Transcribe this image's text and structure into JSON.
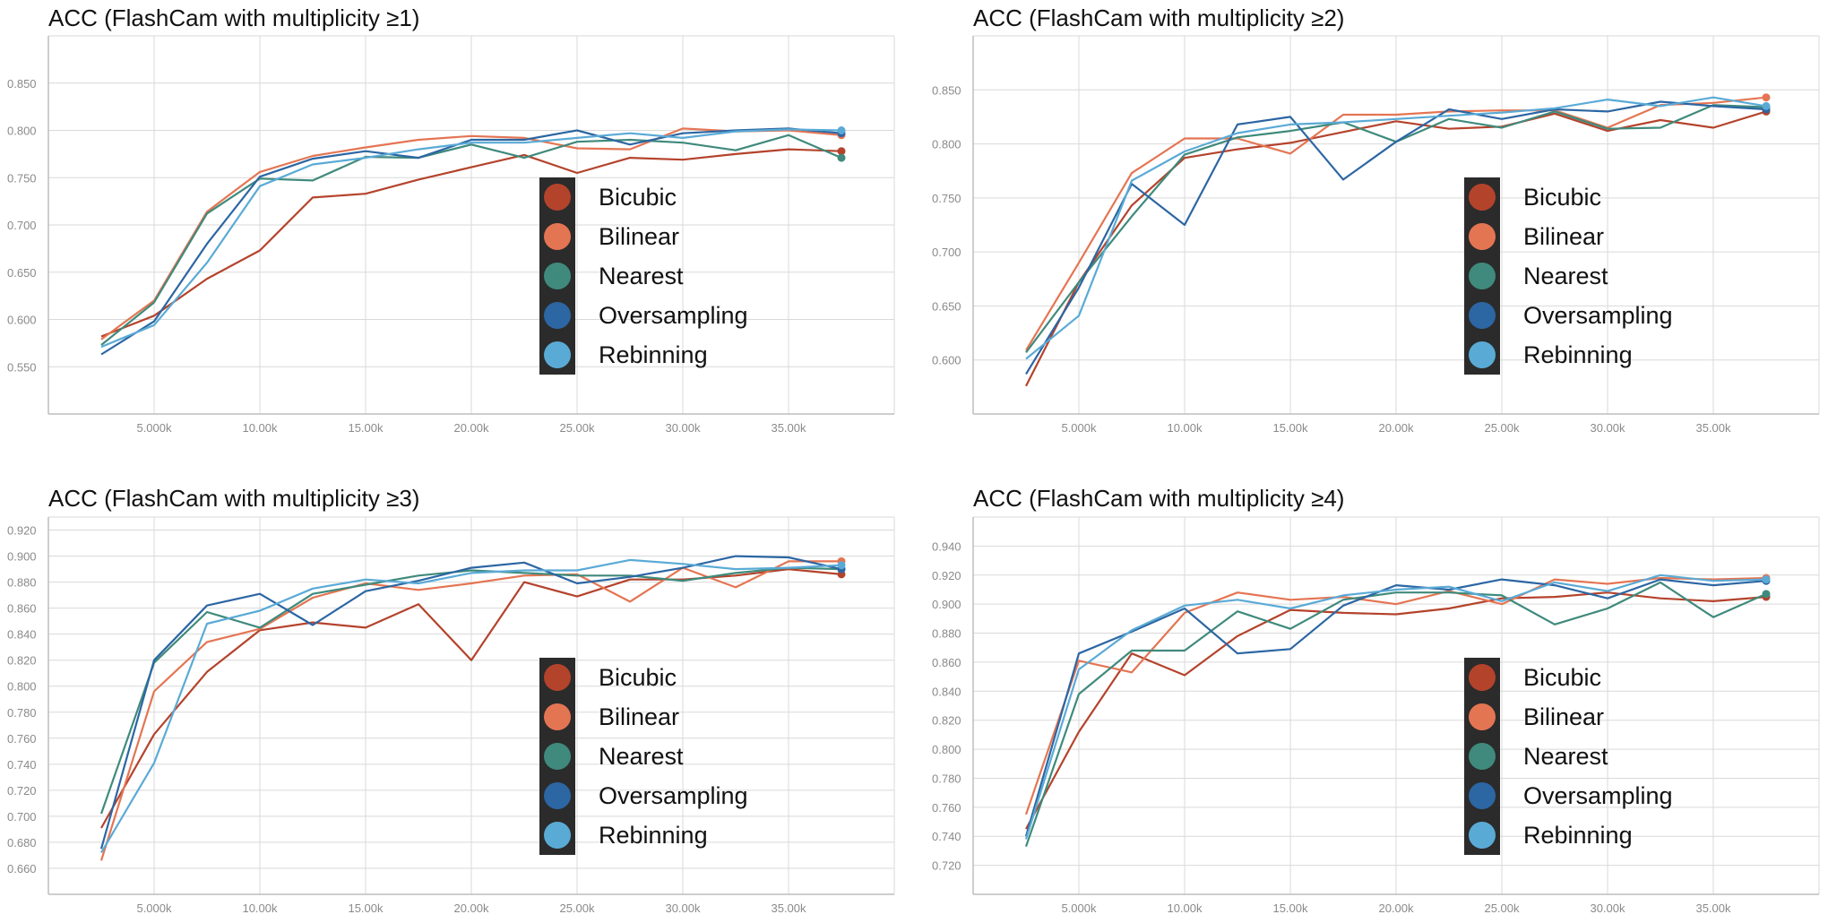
{
  "colors": {
    "Bicubic": "#b4432c",
    "Bilinear": "#e47553",
    "Nearest": "#3f8a7c",
    "Oversampling": "#2c66a3",
    "Rebinning": "#5aaad6",
    "legend_bg": "#2b2b2b",
    "grid": "#d9d9d9",
    "axis": "#bdbdbd",
    "tick_text": "#8a8a8a",
    "title_text": "#111111"
  },
  "chart_data": [
    {
      "type": "line",
      "title": "ACC (FlashCam with multiplicity ≥1)",
      "xlabel": "",
      "ylabel": "",
      "x": [
        2500,
        5000,
        7500,
        10000,
        12500,
        15000,
        17500,
        20000,
        22500,
        25000,
        27500,
        30000,
        32500,
        35000,
        37500
      ],
      "xlim": [
        0,
        40000
      ],
      "ylim": [
        0.5,
        0.9
      ],
      "xticks": [
        5000,
        10000,
        15000,
        20000,
        25000,
        30000,
        35000
      ],
      "xtick_labels": [
        "5.000k",
        "10.00k",
        "15.00k",
        "20.00k",
        "25.00k",
        "30.00k",
        "35.00k"
      ],
      "yticks": [
        0.55,
        0.6,
        0.65,
        0.7,
        0.75,
        0.8,
        0.85
      ],
      "ytick_labels": [
        "0.550",
        "0.600",
        "0.650",
        "0.700",
        "0.750",
        "0.800",
        "0.850"
      ],
      "grid": true,
      "legend_position": "center-right",
      "series": [
        {
          "name": "Bicubic",
          "values": [
            0.582,
            0.604,
            0.643,
            0.673,
            0.729,
            0.733,
            0.748,
            0.761,
            0.774,
            0.755,
            0.771,
            0.769,
            0.775,
            0.78,
            0.778
          ]
        },
        {
          "name": "Bilinear",
          "values": [
            0.579,
            0.62,
            0.714,
            0.756,
            0.773,
            0.782,
            0.79,
            0.794,
            0.792,
            0.781,
            0.78,
            0.802,
            0.799,
            0.8,
            0.795
          ]
        },
        {
          "name": "Nearest",
          "values": [
            0.573,
            0.618,
            0.712,
            0.749,
            0.747,
            0.772,
            0.771,
            0.785,
            0.771,
            0.788,
            0.79,
            0.787,
            0.779,
            0.795,
            0.771
          ]
        },
        {
          "name": "Oversampling",
          "values": [
            0.563,
            0.598,
            0.68,
            0.751,
            0.77,
            0.778,
            0.771,
            0.79,
            0.79,
            0.8,
            0.785,
            0.797,
            0.8,
            0.802,
            0.797
          ]
        },
        {
          "name": "Rebinning",
          "values": [
            0.571,
            0.594,
            0.66,
            0.741,
            0.764,
            0.771,
            0.78,
            0.787,
            0.787,
            0.792,
            0.797,
            0.792,
            0.799,
            0.801,
            0.8
          ]
        }
      ]
    },
    {
      "type": "line",
      "title": "ACC (FlashCam with multiplicity ≥2)",
      "xlabel": "",
      "ylabel": "",
      "x": [
        2500,
        5000,
        7500,
        10000,
        12500,
        15000,
        17500,
        20000,
        22500,
        25000,
        27500,
        30000,
        32500,
        35000,
        37500
      ],
      "xlim": [
        0,
        40000
      ],
      "ylim": [
        0.55,
        0.9
      ],
      "xticks": [
        5000,
        10000,
        15000,
        20000,
        25000,
        30000,
        35000
      ],
      "xtick_labels": [
        "5.000k",
        "10.00k",
        "15.00k",
        "20.00k",
        "25.00k",
        "30.00k",
        "35.00k"
      ],
      "yticks": [
        0.6,
        0.65,
        0.7,
        0.75,
        0.8,
        0.85
      ],
      "ytick_labels": [
        "0.600",
        "0.650",
        "0.700",
        "0.750",
        "0.800",
        "0.850"
      ],
      "grid": true,
      "legend_position": "center-right",
      "series": [
        {
          "name": "Bicubic",
          "values": [
            0.576,
            0.672,
            0.743,
            0.787,
            0.795,
            0.801,
            0.811,
            0.821,
            0.814,
            0.816,
            0.828,
            0.812,
            0.822,
            0.815,
            0.83
          ]
        },
        {
          "name": "Bilinear",
          "values": [
            0.609,
            0.69,
            0.773,
            0.805,
            0.805,
            0.791,
            0.827,
            0.827,
            0.83,
            0.831,
            0.831,
            0.815,
            0.836,
            0.838,
            0.843
          ]
        },
        {
          "name": "Nearest",
          "values": [
            0.607,
            0.672,
            0.733,
            0.79,
            0.806,
            0.812,
            0.82,
            0.802,
            0.823,
            0.815,
            0.83,
            0.814,
            0.815,
            0.836,
            0.834
          ]
        },
        {
          "name": "Oversampling",
          "values": [
            0.587,
            0.667,
            0.763,
            0.725,
            0.818,
            0.825,
            0.767,
            0.802,
            0.832,
            0.823,
            0.832,
            0.83,
            0.839,
            0.835,
            0.832
          ]
        },
        {
          "name": "Rebinning",
          "values": [
            0.601,
            0.641,
            0.766,
            0.793,
            0.81,
            0.818,
            0.82,
            0.823,
            0.826,
            0.829,
            0.833,
            0.841,
            0.835,
            0.843,
            0.835
          ]
        }
      ]
    },
    {
      "type": "line",
      "title": "ACC (FlashCam with multiplicity ≥3)",
      "xlabel": "",
      "ylabel": "",
      "x": [
        2500,
        5000,
        7500,
        10000,
        12500,
        15000,
        17500,
        20000,
        22500,
        25000,
        27500,
        30000,
        32500,
        35000,
        37500
      ],
      "xlim": [
        0,
        40000
      ],
      "ylim": [
        0.64,
        0.93
      ],
      "xticks": [
        5000,
        10000,
        15000,
        20000,
        25000,
        30000,
        35000
      ],
      "xtick_labels": [
        "5.000k",
        "10.00k",
        "15.00k",
        "20.00k",
        "25.00k",
        "30.00k",
        "35.00k"
      ],
      "yticks": [
        0.66,
        0.68,
        0.7,
        0.72,
        0.74,
        0.76,
        0.78,
        0.8,
        0.82,
        0.84,
        0.86,
        0.88,
        0.9,
        0.92
      ],
      "ytick_labels": [
        "0.660",
        "0.680",
        "0.700",
        "0.720",
        "0.740",
        "0.760",
        "0.780",
        "0.800",
        "0.820",
        "0.840",
        "0.860",
        "0.880",
        "0.900",
        "0.920"
      ],
      "grid": true,
      "legend_position": "center-right",
      "series": [
        {
          "name": "Bicubic",
          "values": [
            0.691,
            0.763,
            0.811,
            0.843,
            0.849,
            0.845,
            0.863,
            0.82,
            0.88,
            0.869,
            0.882,
            0.882,
            0.885,
            0.89,
            0.886
          ]
        },
        {
          "name": "Bilinear",
          "values": [
            0.666,
            0.796,
            0.834,
            0.844,
            0.868,
            0.879,
            0.874,
            0.879,
            0.885,
            0.886,
            0.865,
            0.891,
            0.876,
            0.896,
            0.896
          ]
        },
        {
          "name": "Nearest",
          "values": [
            0.702,
            0.818,
            0.857,
            0.845,
            0.871,
            0.878,
            0.885,
            0.889,
            0.887,
            0.885,
            0.885,
            0.881,
            0.887,
            0.891,
            0.89
          ]
        },
        {
          "name": "Oversampling",
          "values": [
            0.675,
            0.82,
            0.862,
            0.871,
            0.847,
            0.873,
            0.881,
            0.891,
            0.895,
            0.879,
            0.884,
            0.891,
            0.9,
            0.899,
            0.89
          ]
        },
        {
          "name": "Rebinning",
          "values": [
            0.672,
            0.741,
            0.848,
            0.858,
            0.875,
            0.882,
            0.879,
            0.887,
            0.889,
            0.889,
            0.897,
            0.894,
            0.89,
            0.891,
            0.893
          ]
        }
      ]
    },
    {
      "type": "line",
      "title": "ACC (FlashCam with multiplicity ≥4)",
      "xlabel": "",
      "ylabel": "",
      "x": [
        2500,
        5000,
        7500,
        10000,
        12500,
        15000,
        17500,
        20000,
        22500,
        25000,
        27500,
        30000,
        32500,
        35000,
        37500
      ],
      "xlim": [
        0,
        40000
      ],
      "ylim": [
        0.7,
        0.96
      ],
      "xticks": [
        5000,
        10000,
        15000,
        20000,
        25000,
        30000,
        35000
      ],
      "xtick_labels": [
        "5.000k",
        "10.00k",
        "15.00k",
        "20.00k",
        "25.00k",
        "30.00k",
        "35.00k"
      ],
      "yticks": [
        0.72,
        0.74,
        0.76,
        0.78,
        0.8,
        0.82,
        0.84,
        0.86,
        0.88,
        0.9,
        0.92,
        0.94
      ],
      "ytick_labels": [
        "0.720",
        "0.740",
        "0.760",
        "0.780",
        "0.800",
        "0.820",
        "0.840",
        "0.860",
        "0.880",
        "0.900",
        "0.920",
        "0.940"
      ],
      "grid": true,
      "legend_position": "center-right",
      "series": [
        {
          "name": "Bicubic",
          "values": [
            0.745,
            0.812,
            0.866,
            0.851,
            0.878,
            0.896,
            0.894,
            0.893,
            0.897,
            0.904,
            0.905,
            0.908,
            0.904,
            0.902,
            0.905
          ]
        },
        {
          "name": "Bilinear",
          "values": [
            0.755,
            0.861,
            0.853,
            0.894,
            0.908,
            0.903,
            0.905,
            0.9,
            0.909,
            0.9,
            0.917,
            0.914,
            0.918,
            0.917,
            0.918
          ]
        },
        {
          "name": "Nearest",
          "values": [
            0.733,
            0.838,
            0.868,
            0.868,
            0.895,
            0.883,
            0.903,
            0.908,
            0.908,
            0.906,
            0.886,
            0.897,
            0.915,
            0.891,
            0.907
          ]
        },
        {
          "name": "Oversampling",
          "values": [
            0.74,
            0.866,
            0.881,
            0.897,
            0.866,
            0.869,
            0.899,
            0.913,
            0.91,
            0.917,
            0.913,
            0.904,
            0.917,
            0.913,
            0.916
          ]
        },
        {
          "name": "Rebinning",
          "values": [
            0.738,
            0.855,
            0.882,
            0.899,
            0.903,
            0.897,
            0.906,
            0.91,
            0.912,
            0.902,
            0.915,
            0.909,
            0.92,
            0.916,
            0.917
          ]
        }
      ]
    }
  ]
}
